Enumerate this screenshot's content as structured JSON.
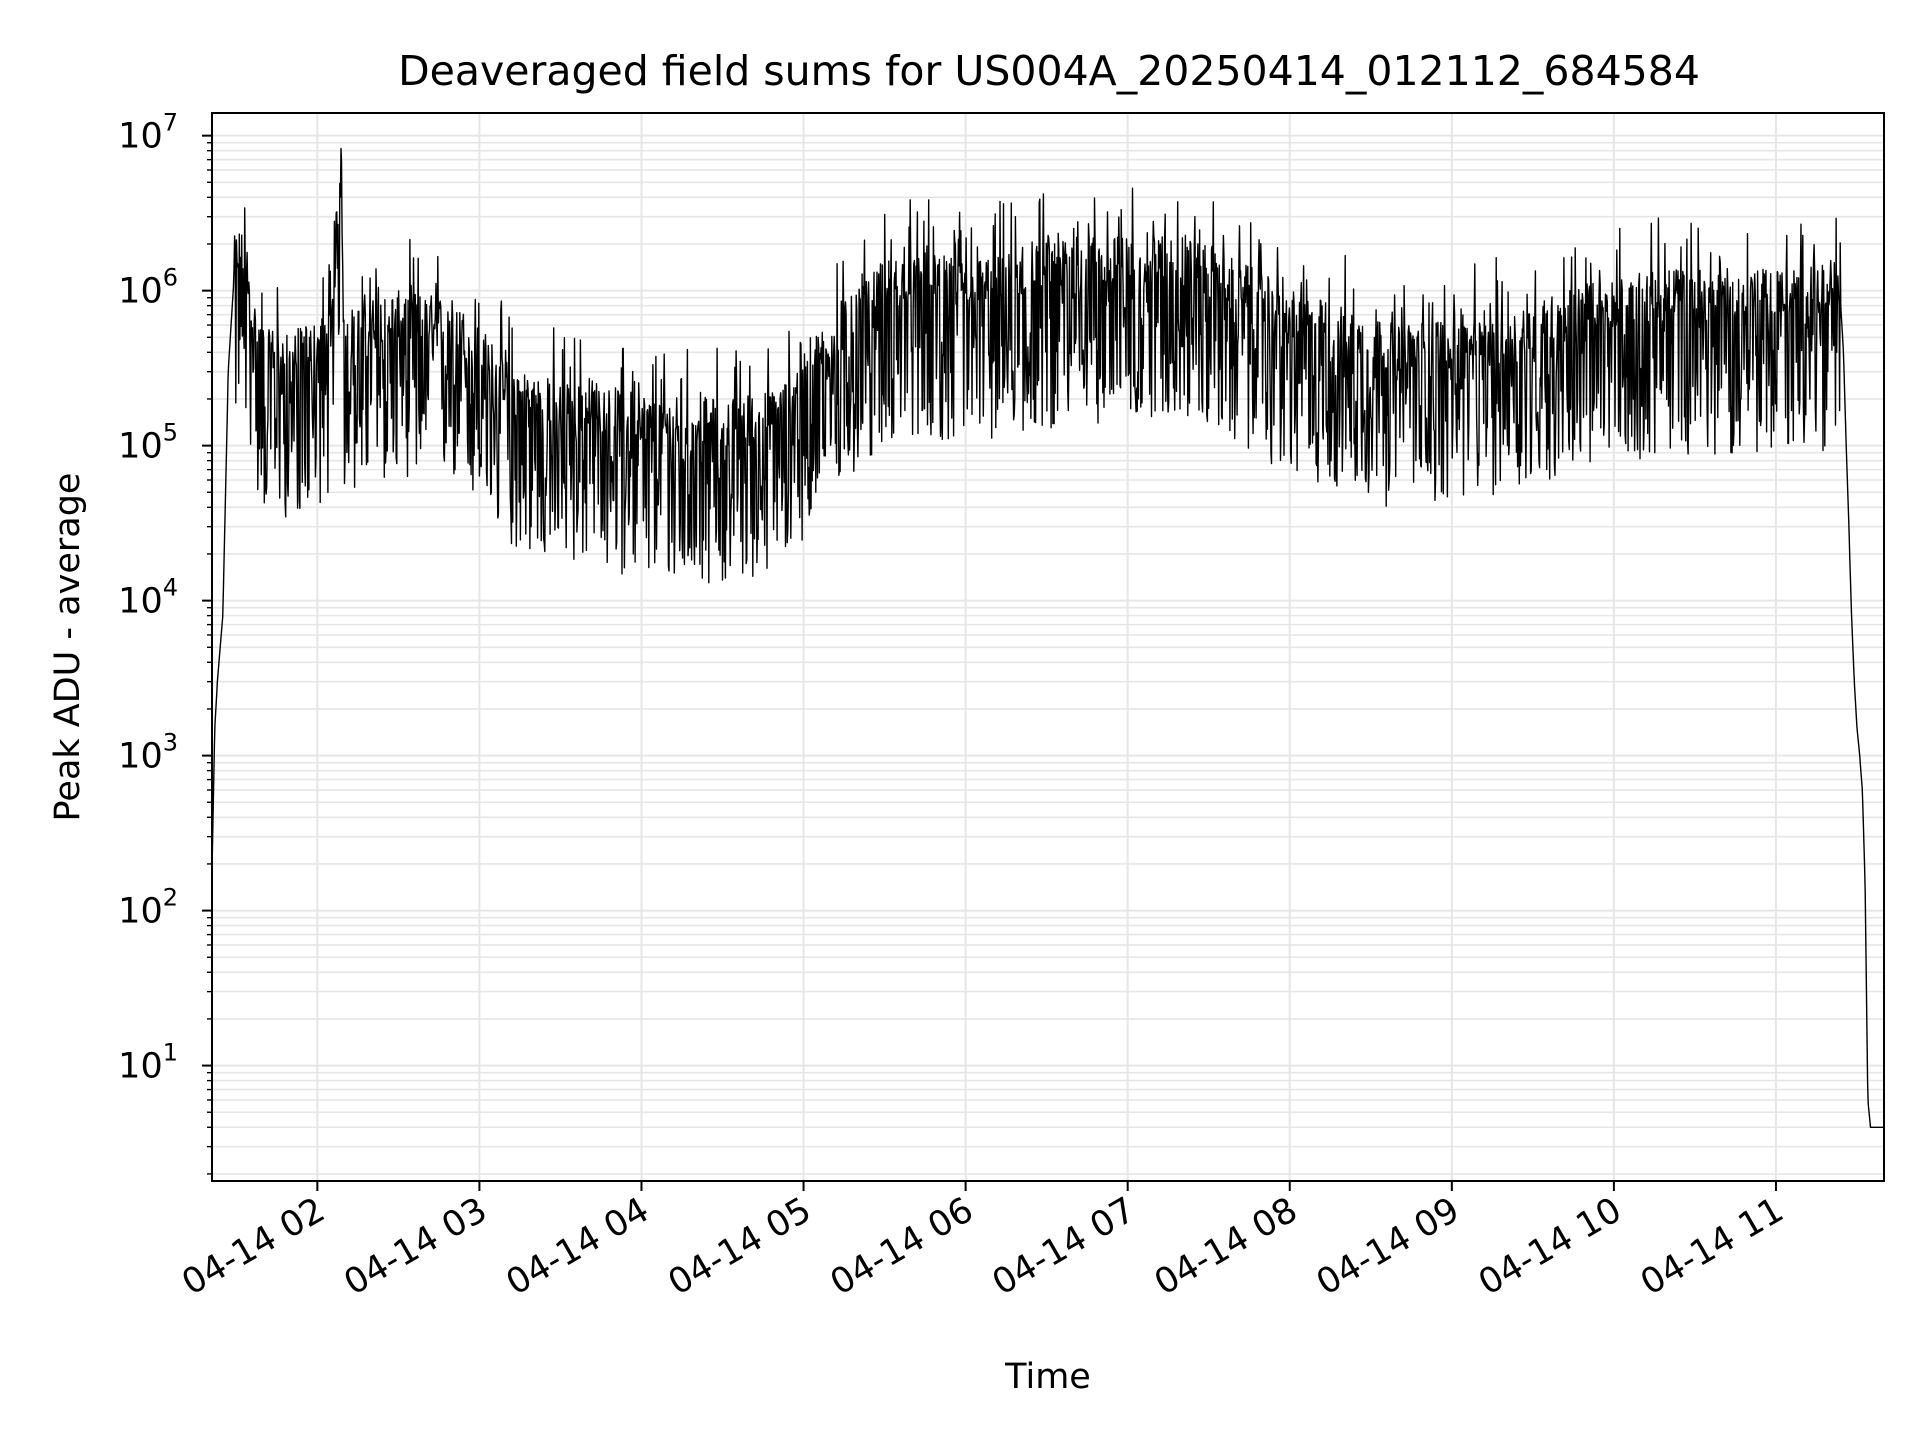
{
  "chart_data": {
    "type": "line",
    "title": "Deaveraged field sums for US004A_20250414_012112_684584",
    "xlabel": "Time",
    "ylabel": "Peak ADU - average",
    "yscale": "log",
    "ylim": [
      1.8,
      14000000
    ],
    "xlim": [
      "2025-04-14 01:21",
      "2025-04-14 11:40"
    ],
    "grid": true,
    "line_color": "#000000",
    "grid_color": "#e6e6e6",
    "xticks": [
      {
        "x": "2025-04-14 02:00",
        "label": "04-14 02"
      },
      {
        "x": "2025-04-14 03:00",
        "label": "04-14 03"
      },
      {
        "x": "2025-04-14 04:00",
        "label": "04-14 04"
      },
      {
        "x": "2025-04-14 05:00",
        "label": "04-14 05"
      },
      {
        "x": "2025-04-14 06:00",
        "label": "04-14 06"
      },
      {
        "x": "2025-04-14 07:00",
        "label": "04-14 07"
      },
      {
        "x": "2025-04-14 08:00",
        "label": "04-14 08"
      },
      {
        "x": "2025-04-14 09:00",
        "label": "04-14 09"
      },
      {
        "x": "2025-04-14 10:00",
        "label": "04-14 10"
      },
      {
        "x": "2025-04-14 11:00",
        "label": "04-14 11"
      }
    ],
    "yticks": [
      {
        "value": 10,
        "base": "10",
        "exp": "1"
      },
      {
        "value": 100,
        "base": "10",
        "exp": "2"
      },
      {
        "value": 1000,
        "base": "10",
        "exp": "3"
      },
      {
        "value": 10000,
        "base": "10",
        "exp": "4"
      },
      {
        "value": 100000,
        "base": "10",
        "exp": "5"
      },
      {
        "value": 1000000,
        "base": "10",
        "exp": "6"
      },
      {
        "value": 10000000,
        "base": "10",
        "exp": "7"
      }
    ],
    "series": [
      {
        "x": [
          "2025-04-14 01:21",
          "2025-04-14 01:22",
          "2025-04-14 01:23",
          "2025-04-14 01:25",
          "2025-04-14 01:27",
          "2025-04-14 01:29",
          "2025-04-14 01:31",
          "2025-04-14 01:33",
          "2025-04-14 01:35",
          "2025-04-14 01:37",
          "2025-04-14 01:39",
          "2025-04-14 01:40",
          "2025-04-14 01:42",
          "2025-04-14 01:45",
          "2025-04-14 01:50",
          "2025-04-14 01:55",
          "2025-04-14 02:00",
          "2025-04-14 02:05",
          "2025-04-14 02:09",
          "2025-04-14 02:10",
          "2025-04-14 02:15",
          "2025-04-14 02:20",
          "2025-04-14 02:30",
          "2025-04-14 02:40",
          "2025-04-14 02:50",
          "2025-04-14 03:00",
          "2025-04-14 03:10",
          "2025-04-14 03:20",
          "2025-04-14 03:30",
          "2025-04-14 03:40",
          "2025-04-14 03:50",
          "2025-04-14 04:00",
          "2025-04-14 04:10",
          "2025-04-14 04:20",
          "2025-04-14 04:30",
          "2025-04-14 04:40",
          "2025-04-14 04:50",
          "2025-04-14 05:00",
          "2025-04-14 05:10",
          "2025-04-14 05:20",
          "2025-04-14 05:30",
          "2025-04-14 05:40",
          "2025-04-14 05:50",
          "2025-04-14 06:00",
          "2025-04-14 06:10",
          "2025-04-14 06:20",
          "2025-04-14 06:30",
          "2025-04-14 06:40",
          "2025-04-14 06:50",
          "2025-04-14 07:00",
          "2025-04-14 07:10",
          "2025-04-14 07:20",
          "2025-04-14 07:30",
          "2025-04-14 07:40",
          "2025-04-14 07:50",
          "2025-04-14 08:00",
          "2025-04-14 08:10",
          "2025-04-14 08:20",
          "2025-04-14 08:30",
          "2025-04-14 08:40",
          "2025-04-14 08:50",
          "2025-04-14 09:00",
          "2025-04-14 09:10",
          "2025-04-14 09:20",
          "2025-04-14 09:30",
          "2025-04-14 09:40",
          "2025-04-14 09:50",
          "2025-04-14 10:00",
          "2025-04-14 10:10",
          "2025-04-14 10:20",
          "2025-04-14 10:30",
          "2025-04-14 10:40",
          "2025-04-14 10:50",
          "2025-04-14 11:00",
          "2025-04-14 11:10",
          "2025-04-14 11:20",
          "2025-04-14 11:24",
          "2025-04-14 11:25",
          "2025-04-14 11:26",
          "2025-04-14 11:27",
          "2025-04-14 11:28",
          "2025-04-14 11:29",
          "2025-04-14 11:30",
          "2025-04-14 11:31",
          "2025-04-14 11:32",
          "2025-04-14 11:33",
          "2025-04-14 11:34",
          "2025-04-14 11:35",
          "2025-04-14 11:37",
          "2025-04-14 11:40"
        ],
        "y": [
          180,
          1500,
          3000,
          8000,
          300000,
          1100000,
          1300000,
          1200000,
          800000,
          400000,
          350000,
          300000,
          280000,
          300000,
          250000,
          300000,
          320000,
          400000,
          6700000,
          380000,
          400000,
          450000,
          500000,
          480000,
          450000,
          300000,
          180000,
          150000,
          130000,
          140000,
          120000,
          110000,
          100000,
          105000,
          100000,
          110000,
          115000,
          200000,
          350000,
          500000,
          800000,
          900000,
          850000,
          800000,
          850000,
          900000,
          1000000,
          1100000,
          1100000,
          1150000,
          1200000,
          1200000,
          1000000,
          800000,
          650000,
          500000,
          450000,
          400000,
          350000,
          300000,
          320000,
          350000,
          350000,
          380000,
          420000,
          500000,
          550000,
          600000,
          650000,
          700000,
          700000,
          700000,
          680000,
          700000,
          700000,
          750000,
          800000,
          400000,
          100000,
          30000,
          8000,
          3000,
          1500,
          1000,
          600,
          150,
          6,
          4,
          4,
          4
        ]
      }
    ]
  }
}
